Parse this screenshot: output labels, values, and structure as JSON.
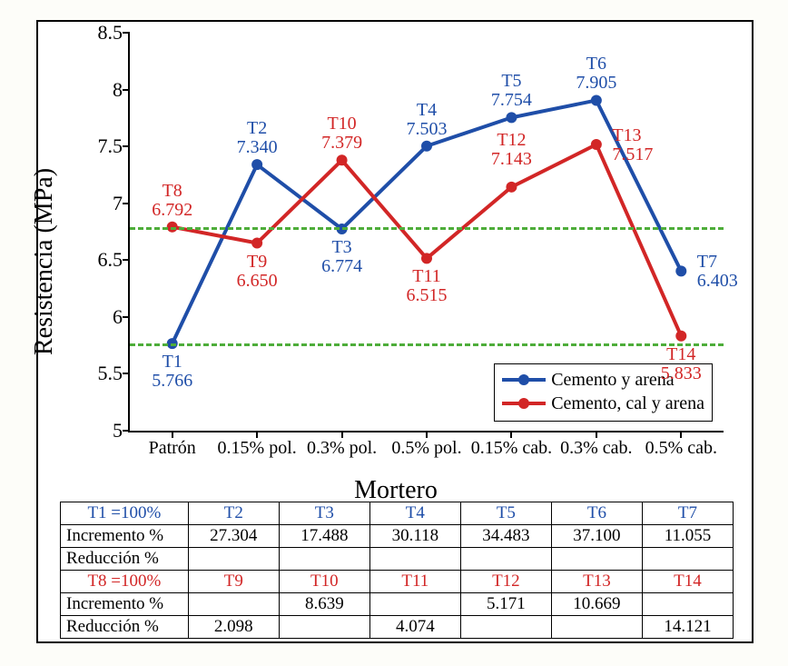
{
  "chart": {
    "type": "line",
    "y_axis_title": "Resistencia (MPa)",
    "x_axis_title": "Mortero",
    "y_lim": [
      5,
      8.5
    ],
    "y_tick_step": 0.5,
    "y_ticks": [
      5,
      5.5,
      6,
      6.5,
      7,
      7.5,
      8,
      8.5
    ],
    "y_tick_labels": [
      "5",
      "5.5",
      "6",
      "6.5",
      "7",
      "7.5",
      "8",
      "8.5"
    ],
    "x_categories": [
      "Patrón",
      "0.15% pol.",
      "0.3% pol.",
      "0.5% pol.",
      "0.15% cab.",
      "0.3% cab.",
      "0.5% cab."
    ],
    "title_fontsize": 28,
    "tick_fontsize": 22,
    "xtick_fontsize": 20,
    "label_fontsize": 20,
    "background_color": "#ffffff",
    "axis_color": "#000000",
    "series": [
      {
        "name": "Cemento y arena",
        "color": "#1f4ea8",
        "text_color": "#1f4ea8",
        "line_width": 4,
        "marker_size": 12,
        "point_ids": [
          "T1",
          "T2",
          "T3",
          "T4",
          "T5",
          "T6",
          "T7"
        ],
        "values": [
          5.766,
          7.34,
          6.774,
          7.503,
          7.754,
          7.905,
          6.403
        ],
        "value_labels": [
          "5.766",
          "7.340",
          "6.774",
          "7.503",
          "7.754",
          "7.905",
          "6.403"
        ],
        "label_position": [
          "below",
          "above",
          "below",
          "above",
          "above",
          "above",
          "right"
        ]
      },
      {
        "name": "Cemento, cal y arena",
        "color": "#d22626",
        "text_color": "#d22626",
        "line_width": 4,
        "marker_size": 12,
        "point_ids": [
          "T8",
          "T9",
          "T10",
          "T11",
          "T12",
          "T13",
          "T14"
        ],
        "values": [
          6.792,
          6.65,
          7.379,
          6.515,
          7.143,
          7.517,
          5.833
        ],
        "value_labels": [
          "6.792",
          "6.650",
          "7.379",
          "6.515",
          "7.143",
          "7.517",
          "5.833"
        ],
        "label_position": [
          "above",
          "below",
          "above",
          "below",
          "above-offset",
          "right",
          "below"
        ]
      }
    ],
    "reference_lines": [
      {
        "y": 6.792,
        "color": "#4ead3a",
        "dash": "8,6",
        "width": 3
      },
      {
        "y": 5.766,
        "color": "#4ead3a",
        "dash": "8,6",
        "width": 3
      }
    ],
    "legend": {
      "position": "bottom-right-inside",
      "border_color": "#000000",
      "items": [
        "Cemento y arena",
        "Cemento, cal y arena"
      ]
    }
  },
  "table": {
    "first_col_width_pct": 19,
    "rows": [
      {
        "label": "T1 =100%",
        "label_color": "#1f4ea8",
        "label_align": "center",
        "cells": [
          "T2",
          "T3",
          "T4",
          "T5",
          "T6",
          "T7"
        ],
        "cells_color": "#1f4ea8"
      },
      {
        "label": "Incremento %",
        "label_color": "#000000",
        "label_align": "left",
        "cells": [
          "27.304",
          "17.488",
          "30.118",
          "34.483",
          "37.100",
          "11.055"
        ],
        "cells_color": "#000000"
      },
      {
        "label": "Reducción %",
        "label_color": "#000000",
        "label_align": "left",
        "cells": [
          "",
          "",
          "",
          "",
          "",
          ""
        ],
        "cells_color": "#000000"
      },
      {
        "label": "T8 =100%",
        "label_color": "#d22626",
        "label_align": "center",
        "cells": [
          "T9",
          "T10",
          "T11",
          "T12",
          "T13",
          "T14"
        ],
        "cells_color": "#d22626"
      },
      {
        "label": "Incremento %",
        "label_color": "#000000",
        "label_align": "left",
        "cells": [
          "",
          "8.639",
          "",
          "5.171",
          "10.669",
          ""
        ],
        "cells_color": "#000000"
      },
      {
        "label": "Reducción %",
        "label_color": "#000000",
        "label_align": "left",
        "cells": [
          "2.098",
          "",
          "4.074",
          "",
          "",
          "14.121"
        ],
        "cells_color": "#000000"
      }
    ]
  }
}
